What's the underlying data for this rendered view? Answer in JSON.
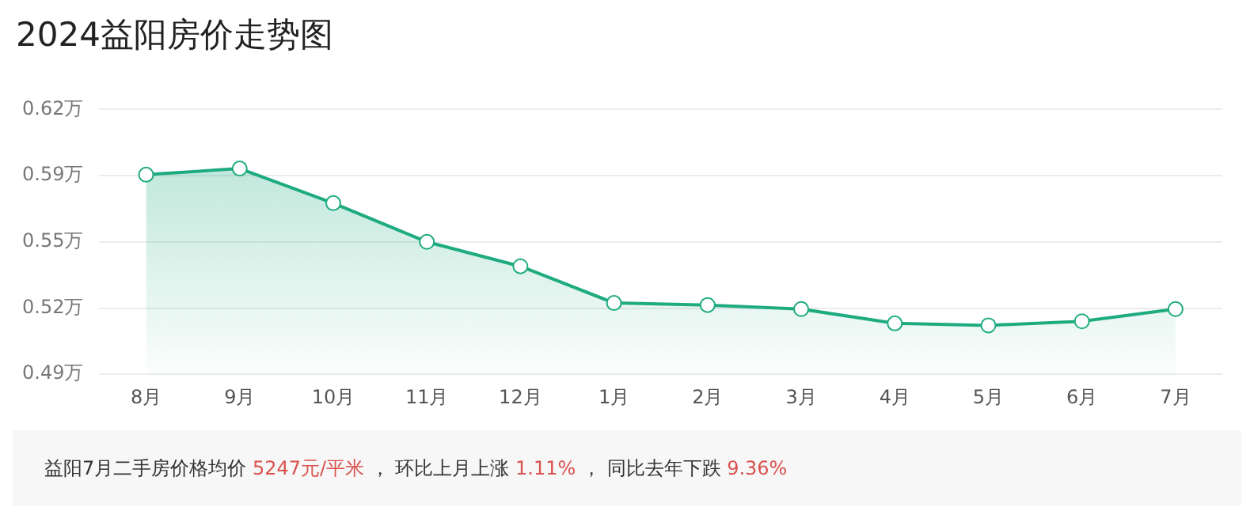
{
  "chart_data": {
    "type": "area",
    "title": "2024益阳房价走势图",
    "categories": [
      "8月",
      "9月",
      "10月",
      "11月",
      "12月",
      "1月",
      "2月",
      "3月",
      "4月",
      "5月",
      "6月",
      "7月"
    ],
    "series": [
      {
        "color": "#1fab80",
        "values": [
          0.588,
          0.591,
          0.574,
          0.555,
          0.543,
          0.525,
          0.524,
          0.522,
          0.515,
          0.514,
          0.516,
          0.522
        ]
      }
    ],
    "ylim": [
      0.49,
      0.62
    ],
    "yticks": [
      {
        "value": 0.49,
        "label": "0.49万"
      },
      {
        "value": 0.5225,
        "label": "0.52万"
      },
      {
        "value": 0.555,
        "label": "0.55万"
      },
      {
        "value": 0.5875,
        "label": "0.59万"
      },
      {
        "value": 0.62,
        "label": "0.62万"
      }
    ],
    "grid": "y",
    "marker": "circle",
    "legend": false,
    "annotations": [
      "益阳7月二手房价格均价 ",
      "5247元/平米",
      " ，  环比上月上涨 ",
      "1.11%",
      " ，  同比去年下跌 ",
      "9.36%"
    ]
  }
}
